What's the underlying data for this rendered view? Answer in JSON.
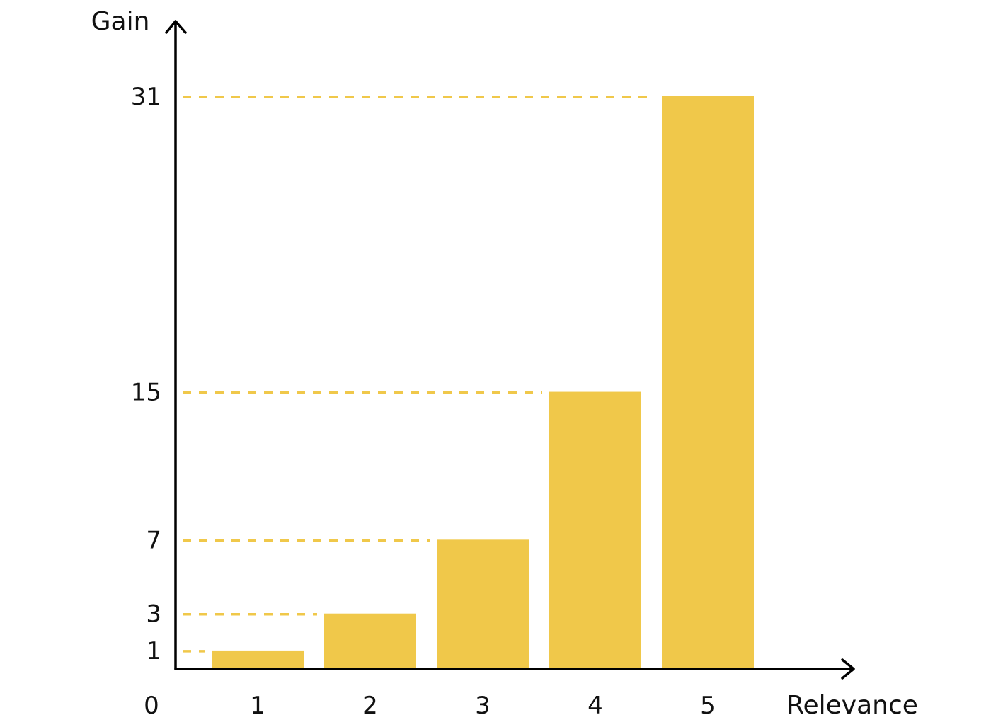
{
  "colors": {
    "bar": "#F0C84A",
    "guide": "#F0C84A",
    "axis": "#000000",
    "text": "#111111",
    "background": "#FFFFFF"
  },
  "chart_data": {
    "type": "bar",
    "title": "",
    "xlabel": "Relevance",
    "ylabel": "Gain",
    "origin_label": "0",
    "categories": [
      "1",
      "2",
      "3",
      "4",
      "5"
    ],
    "values": [
      1,
      3,
      7,
      15,
      31
    ],
    "y_ticks": [
      "1",
      "3",
      "7",
      "15",
      "31"
    ],
    "ylim": [
      0,
      31
    ],
    "grid": false,
    "dashed_value_guides": true,
    "legend": "none"
  }
}
